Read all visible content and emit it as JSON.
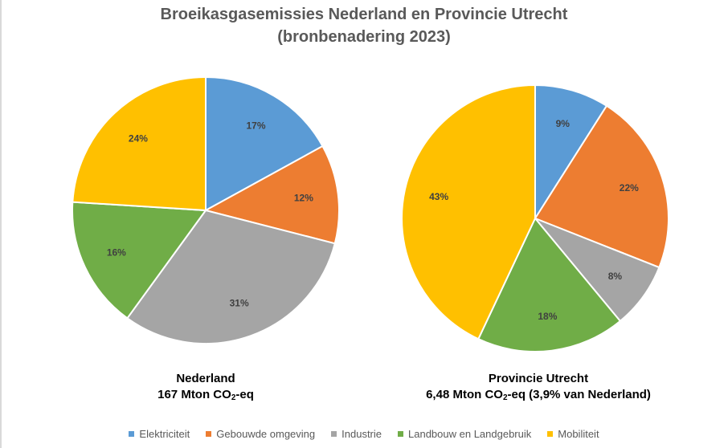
{
  "title": {
    "line1": "Broeikasgasemissies Nederland en Provincie Utrecht",
    "line2": "(bronbenadering 2023)"
  },
  "chart_data": [
    {
      "type": "pie",
      "caption_line1": "Nederland",
      "caption_line2_prefix": "167 Mton CO",
      "caption_line2_sub": "2",
      "caption_line2_suffix": "-eq",
      "categories": [
        "Elektriciteit",
        "Gebouwde omgeving",
        "Industrie",
        "Landbouw en Landgebruik",
        "Mobiliteit"
      ],
      "values": [
        17,
        12,
        31,
        16,
        24
      ],
      "labels": [
        "17%",
        "12%",
        "31%",
        "16%",
        "24%"
      ]
    },
    {
      "type": "pie",
      "caption_line1": "Provincie Utrecht",
      "caption_line2_prefix": "6,48 Mton CO",
      "caption_line2_sub": "2",
      "caption_line2_suffix": "-eq (3,9% van Nederland)",
      "categories": [
        "Elektriciteit",
        "Gebouwde omgeving",
        "Industrie",
        "Landbouw en Landgebruik",
        "Mobiliteit"
      ],
      "values": [
        9,
        22,
        8,
        18,
        43
      ],
      "labels": [
        "9%",
        "22%",
        "8%",
        "18%",
        "43%"
      ]
    }
  ],
  "legend": {
    "position": "bottom",
    "items": [
      {
        "label": "Elektriciteit",
        "color": "#5b9bd5"
      },
      {
        "label": "Gebouwde omgeving",
        "color": "#ed7d31"
      },
      {
        "label": "Industrie",
        "color": "#a5a5a5"
      },
      {
        "label": "Landbouw en Landgebruik",
        "color": "#70ad47"
      },
      {
        "label": "Mobiliteit",
        "color": "#ffc000"
      }
    ]
  }
}
